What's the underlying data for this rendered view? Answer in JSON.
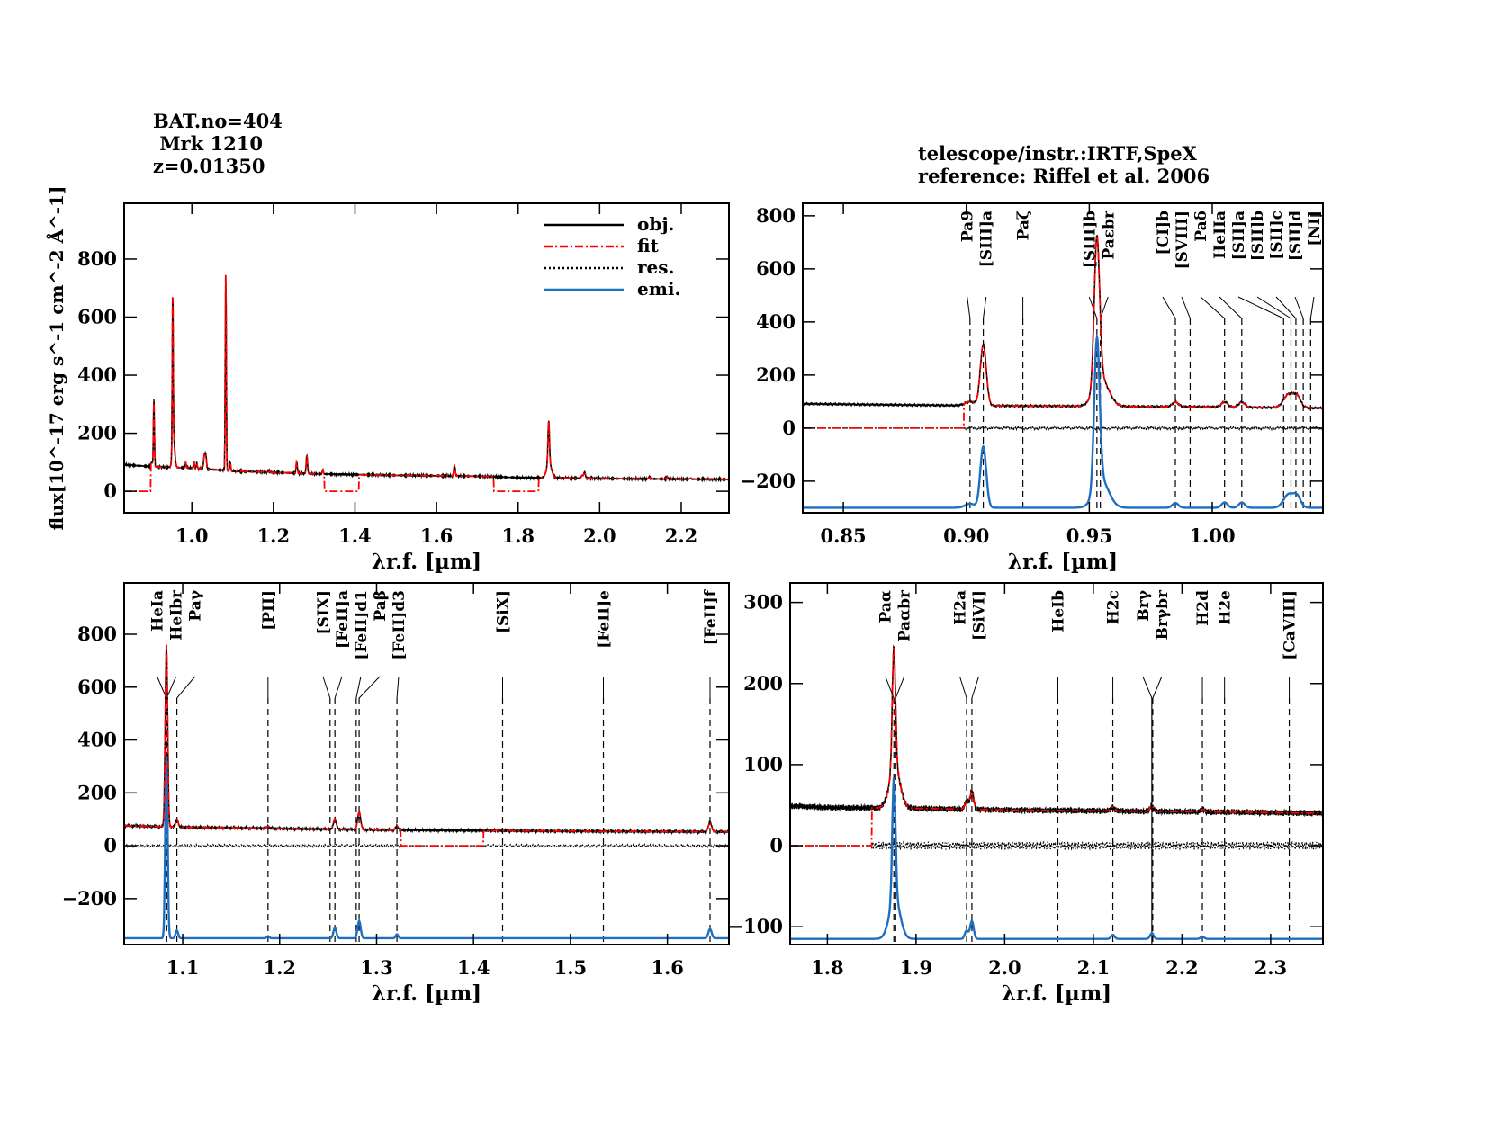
{
  "header": {
    "bat": "BAT.no=404",
    "name": "Mrk 1210",
    "z": "z=0.01350",
    "telescope": "telescope/instr.:IRTF,SpeX",
    "reference": "reference: Riffel et al. 2006"
  },
  "colors": {
    "obj": "#000000",
    "fit": "#ff0000",
    "res": "#000000",
    "emi": "#1f6fc0"
  },
  "chart_data": {
    "type": "line",
    "xlabel": "λr.f. [µm]",
    "ylabel": "flux[10^-17 erg s^-1 cm^-2 Å^-1]",
    "legend": {
      "placement": "top-right",
      "entries": [
        "obj.",
        "fit",
        "res.",
        "emi."
      ]
    },
    "continuum": [
      [
        0.83,
        92
      ],
      [
        0.9,
        85
      ],
      [
        1.0,
        80
      ],
      [
        1.1,
        70
      ],
      [
        1.2,
        65
      ],
      [
        1.3,
        60
      ],
      [
        1.5,
        55
      ],
      [
        1.7,
        52
      ],
      [
        1.8,
        47
      ],
      [
        1.9,
        46
      ],
      [
        2.0,
        44
      ],
      [
        2.2,
        42
      ],
      [
        2.36,
        40
      ]
    ],
    "lines": [
      {
        "w": 0.9069,
        "amp": 230,
        "sig": 0.0012
      },
      {
        "w": 0.9531,
        "amp": 560,
        "sig": 0.0011
      },
      {
        "w": 0.955,
        "amp": 100,
        "sig": 0.003
      },
      {
        "w": 0.9015,
        "amp": 15,
        "sig": 0.002
      },
      {
        "w": 1.005,
        "amp": 20,
        "sig": 0.0012
      },
      {
        "w": 1.012,
        "amp": 20,
        "sig": 0.0012
      },
      {
        "w": 0.985,
        "amp": 18,
        "sig": 0.0012
      },
      {
        "w": 1.031,
        "amp": 50,
        "sig": 0.002
      },
      {
        "w": 1.0345,
        "amp": 40,
        "sig": 0.0015
      },
      {
        "w": 1.0832,
        "amp": 690,
        "sig": 0.0012
      },
      {
        "w": 1.094,
        "amp": 30,
        "sig": 0.0013
      },
      {
        "w": 1.188,
        "amp": 8,
        "sig": 0.0013
      },
      {
        "w": 1.257,
        "amp": 40,
        "sig": 0.0015
      },
      {
        "w": 1.282,
        "amp": 65,
        "sig": 0.0016
      },
      {
        "w": 1.321,
        "amp": 15,
        "sig": 0.0013
      },
      {
        "w": 1.644,
        "amp": 35,
        "sig": 0.0017
      },
      {
        "w": 1.875,
        "amp": 150,
        "sig": 0.0018
      },
      {
        "w": 1.876,
        "amp": 50,
        "sig": 0.006
      },
      {
        "w": 1.957,
        "amp": 10,
        "sig": 0.002
      },
      {
        "w": 1.963,
        "amp": 22,
        "sig": 0.002
      },
      {
        "w": 2.122,
        "amp": 5,
        "sig": 0.002
      },
      {
        "w": 2.166,
        "amp": 7,
        "sig": 0.002
      },
      {
        "w": 2.223,
        "amp": 3,
        "sig": 0.002
      }
    ],
    "fit_masked_ranges": [
      [
        0.83,
        0.899
      ],
      [
        1.325,
        1.41
      ],
      [
        1.74,
        1.85
      ]
    ],
    "panels": [
      {
        "id": "overview",
        "xlim": [
          0.834,
          2.317
        ],
        "ylim": [
          -74,
          992
        ],
        "xticks": [
          1.0,
          1.2,
          1.4,
          1.6,
          1.8,
          2.0,
          2.2
        ],
        "xticklabels": [
          "1.0",
          "1.2",
          "1.4",
          "1.6",
          "1.8",
          "2.0",
          "2.2"
        ],
        "yticks": [
          0,
          200,
          400,
          600,
          800
        ],
        "yticklabels": [
          "0",
          "200",
          "400",
          "600",
          "800"
        ],
        "show_res": false,
        "emi_offset": null,
        "markers": []
      },
      {
        "id": "z-band",
        "xlim": [
          0.8335,
          1.045
        ],
        "ylim": [
          -319,
          847
        ],
        "xticks": [
          0.85,
          0.9,
          0.95,
          1.0
        ],
        "xticklabels": [
          "0.85",
          "0.90",
          "0.95",
          "1.00"
        ],
        "yticks": [
          -200,
          0,
          200,
          400,
          600,
          800
        ],
        "yticklabels": [
          "−200",
          "0",
          "200",
          "400",
          "600",
          "800"
        ],
        "show_res": true,
        "emi_offset": -300,
        "markers": [
          {
            "w": 0.9015,
            "label": "Pa9"
          },
          {
            "w": 0.9069,
            "label": "[SIII]a"
          },
          {
            "w": 0.923,
            "label": "Paζ"
          },
          {
            "w": 0.9531,
            "label": "[SIII]b"
          },
          {
            "w": 0.9545,
            "label": "Paεbr"
          },
          {
            "w": 0.985,
            "label": "[CI]b"
          },
          {
            "w": 0.991,
            "label": "[SVIII]"
          },
          {
            "w": 1.005,
            "label": "Paδ"
          },
          {
            "w": 1.012,
            "label": "HeIIa"
          },
          {
            "w": 1.029,
            "label": "[SII]a"
          },
          {
            "w": 1.032,
            "label": "[SII]b"
          },
          {
            "w": 1.034,
            "label": "[SII]c"
          },
          {
            "w": 1.037,
            "label": "[SII]d"
          },
          {
            "w": 1.04,
            "label": "[NI]"
          }
        ]
      },
      {
        "id": "j-band",
        "xlim": [
          1.0396,
          1.6635
        ],
        "ylim": [
          -374,
          994
        ],
        "xticks": [
          1.1,
          1.2,
          1.3,
          1.4,
          1.5,
          1.6
        ],
        "xticklabels": [
          "1.1",
          "1.2",
          "1.3",
          "1.4",
          "1.5",
          "1.6"
        ],
        "yticks": [
          -200,
          0,
          200,
          400,
          600,
          800
        ],
        "yticklabels": [
          "−200",
          "0",
          "200",
          "400",
          "600",
          "800"
        ],
        "show_res": true,
        "emi_offset": -350,
        "markers": [
          {
            "w": 1.0832,
            "label": "HeIa"
          },
          {
            "w": 1.0835,
            "label": "HeIbr"
          },
          {
            "w": 1.094,
            "label": "Paγ"
          },
          {
            "w": 1.188,
            "label": "[PII]"
          },
          {
            "w": 1.252,
            "label": "[SIX]"
          },
          {
            "w": 1.257,
            "label": "[FeII]a"
          },
          {
            "w": 1.279,
            "label": "[FeII]d1"
          },
          {
            "w": 1.282,
            "label": "Paβ"
          },
          {
            "w": 1.321,
            "label": "[FeII]d3"
          },
          {
            "w": 1.43,
            "label": "[SiX]"
          },
          {
            "w": 1.534,
            "label": "[FeII]e"
          },
          {
            "w": 1.644,
            "label": "[FeII]f"
          }
        ]
      },
      {
        "id": "k-band",
        "xlim": [
          1.758,
          2.359
        ],
        "ylim": [
          -122,
          324
        ],
        "xticks": [
          1.8,
          1.9,
          2.0,
          2.1,
          2.2,
          2.3
        ],
        "xticklabels": [
          "1.8",
          "1.9",
          "2.0",
          "2.1",
          "2.2",
          "2.3"
        ],
        "yticks": [
          -100,
          0,
          100,
          200,
          300
        ],
        "yticklabels": [
          "−100",
          "0",
          "100",
          "200",
          "300"
        ],
        "show_res": true,
        "emi_offset": -115,
        "markers": [
          {
            "w": 1.875,
            "label": "Paα"
          },
          {
            "w": 1.877,
            "label": "Paαbr"
          },
          {
            "w": 1.957,
            "label": "H2a"
          },
          {
            "w": 1.963,
            "label": "[SiVI]"
          },
          {
            "w": 2.06,
            "label": "HeIb"
          },
          {
            "w": 2.122,
            "label": "H2c"
          },
          {
            "w": 2.166,
            "label": "Brγ",
            "solid": true
          },
          {
            "w": 2.167,
            "label": "Brγbr"
          },
          {
            "w": 2.223,
            "label": "H2d"
          },
          {
            "w": 2.248,
            "label": "H2e"
          },
          {
            "w": 2.321,
            "label": "[CaVIII]"
          }
        ]
      }
    ]
  }
}
